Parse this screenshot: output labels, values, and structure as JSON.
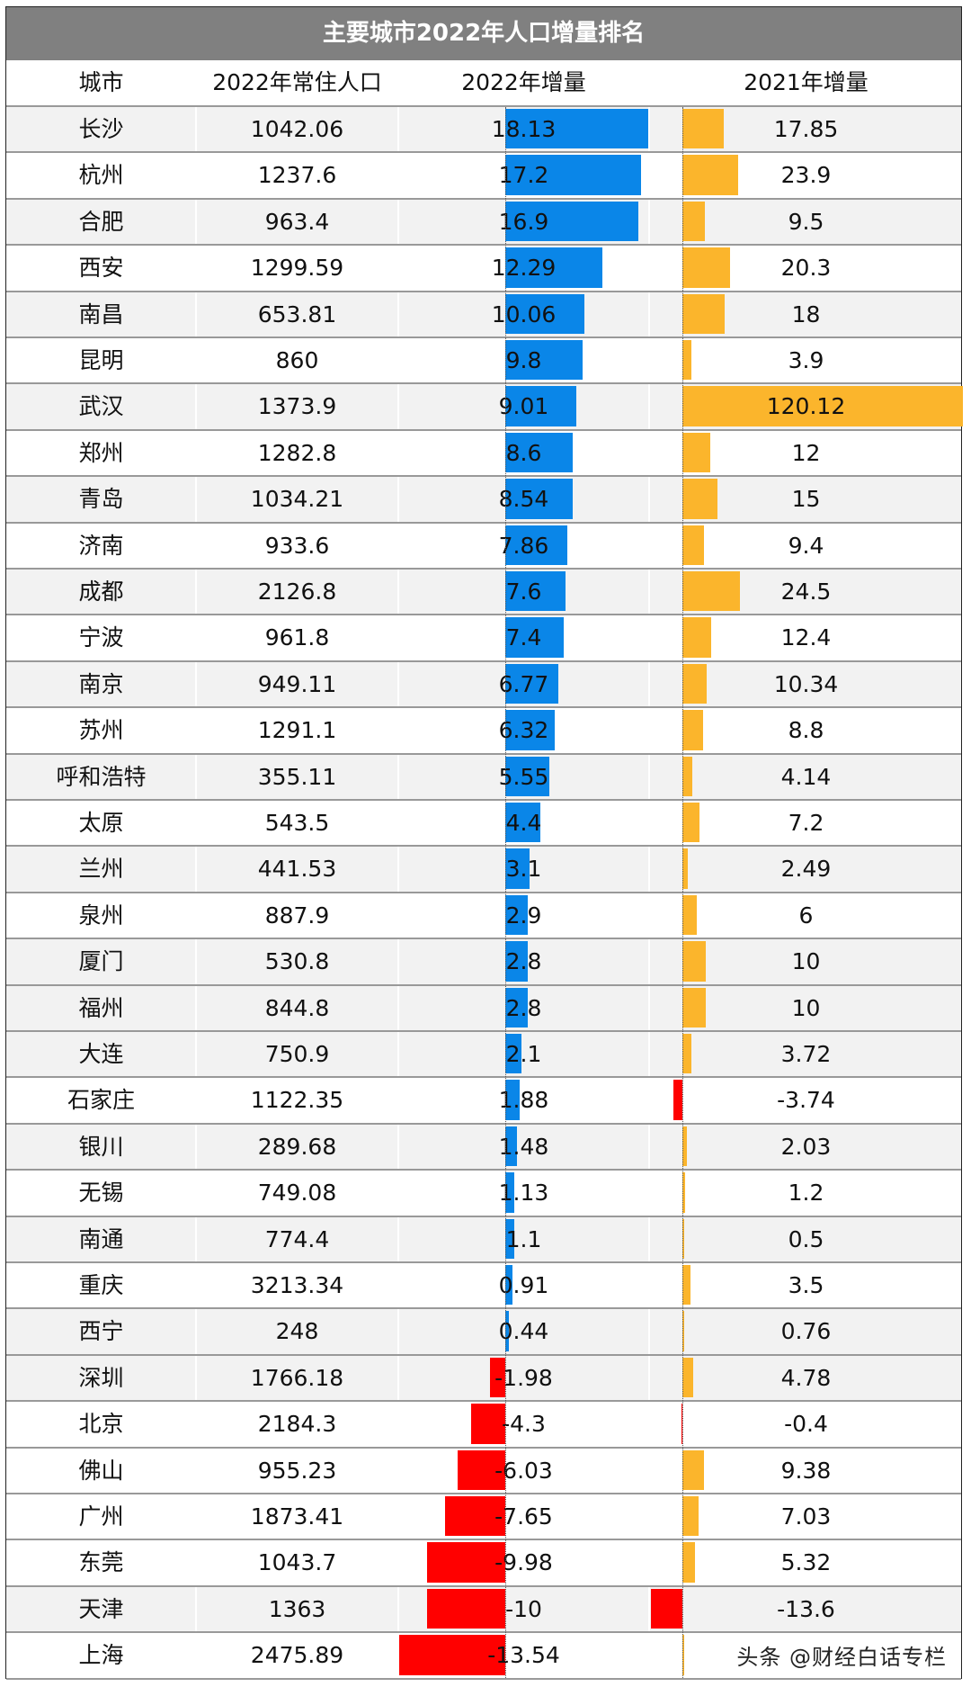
{
  "title": "主要城市2022年人口增量排名",
  "headers": {
    "city": "城市",
    "population_2022": "2022年常住人口",
    "increase_2022": "2022年增量",
    "increase_2021": "2021年增量"
  },
  "watermark": "头条 @财经白话专栏",
  "colors": {
    "title_bg": "#808080",
    "positive_2022": "#0a86e8",
    "positive_2021": "#fbb52c",
    "negative": "#ff0000",
    "row_gray": "#f2f2f2"
  },
  "rows": [
    {
      "city": "长沙",
      "pop": "1042.06",
      "inc2022": "18.13",
      "inc2021": "17.85",
      "bg": "gray"
    },
    {
      "city": "杭州",
      "pop": "1237.6",
      "inc2022": "17.2",
      "inc2021": "23.9",
      "bg": "white"
    },
    {
      "city": "合肥",
      "pop": "963.4",
      "inc2022": "16.9",
      "inc2021": "9.5",
      "bg": "gray"
    },
    {
      "city": "西安",
      "pop": "1299.59",
      "inc2022": "12.29",
      "inc2021": "20.3",
      "bg": "white"
    },
    {
      "city": "南昌",
      "pop": "653.81",
      "inc2022": "10.06",
      "inc2021": "18",
      "bg": "gray"
    },
    {
      "city": "昆明",
      "pop": "860",
      "inc2022": "9.8",
      "inc2021": "3.9",
      "bg": "white"
    },
    {
      "city": "武汉",
      "pop": "1373.9",
      "inc2022": "9.01",
      "inc2021": "120.12",
      "bg": "gray"
    },
    {
      "city": "郑州",
      "pop": "1282.8",
      "inc2022": "8.6",
      "inc2021": "12",
      "bg": "white"
    },
    {
      "city": "青岛",
      "pop": "1034.21",
      "inc2022": "8.54",
      "inc2021": "15",
      "bg": "gray"
    },
    {
      "city": "济南",
      "pop": "933.6",
      "inc2022": "7.86",
      "inc2021": "9.4",
      "bg": "white"
    },
    {
      "city": "成都",
      "pop": "2126.8",
      "inc2022": "7.6",
      "inc2021": "24.5",
      "bg": "gray"
    },
    {
      "city": "宁波",
      "pop": "961.8",
      "inc2022": "7.4",
      "inc2021": "12.4",
      "bg": "white"
    },
    {
      "city": "南京",
      "pop": "949.11",
      "inc2022": "6.77",
      "inc2021": "10.34",
      "bg": "gray"
    },
    {
      "city": "苏州",
      "pop": "1291.1",
      "inc2022": "6.32",
      "inc2021": "8.8",
      "bg": "white"
    },
    {
      "city": "呼和浩特",
      "pop": "355.11",
      "inc2022": "5.55",
      "inc2021": "4.14",
      "bg": "gray"
    },
    {
      "city": "太原",
      "pop": "543.5",
      "inc2022": "4.4",
      "inc2021": "7.2",
      "bg": "white"
    },
    {
      "city": "兰州",
      "pop": "441.53",
      "inc2022": "3.1",
      "inc2021": "2.49",
      "bg": "gray"
    },
    {
      "city": "泉州",
      "pop": "887.9",
      "inc2022": "2.9",
      "inc2021": "6",
      "bg": "white"
    },
    {
      "city": "厦门",
      "pop": "530.8",
      "inc2022": "2.8",
      "inc2021": "10",
      "bg": "gray"
    },
    {
      "city": "福州",
      "pop": "844.8",
      "inc2022": "2.8",
      "inc2021": "10",
      "bg": "gray"
    },
    {
      "city": "大连",
      "pop": "750.9",
      "inc2022": "2.1",
      "inc2021": "3.72",
      "bg": "gray"
    },
    {
      "city": "石家庄",
      "pop": "1122.35",
      "inc2022": "1.88",
      "inc2021": "-3.74",
      "bg": "white"
    },
    {
      "city": "银川",
      "pop": "289.68",
      "inc2022": "1.48",
      "inc2021": "2.03",
      "bg": "gray"
    },
    {
      "city": "无锡",
      "pop": "749.08",
      "inc2022": "1.13",
      "inc2021": "1.2",
      "bg": "white"
    },
    {
      "city": "南通",
      "pop": "774.4",
      "inc2022": "1.1",
      "inc2021": "0.5",
      "bg": "gray"
    },
    {
      "city": "重庆",
      "pop": "3213.34",
      "inc2022": "0.91",
      "inc2021": "3.5",
      "bg": "white"
    },
    {
      "city": "西宁",
      "pop": "248",
      "inc2022": "0.44",
      "inc2021": "0.76",
      "bg": "gray"
    },
    {
      "city": "深圳",
      "pop": "1766.18",
      "inc2022": "-1.98",
      "inc2021": "4.78",
      "bg": "gray"
    },
    {
      "city": "北京",
      "pop": "2184.3",
      "inc2022": "-4.3",
      "inc2021": "-0.4",
      "bg": "white"
    },
    {
      "city": "佛山",
      "pop": "955.23",
      "inc2022": "-6.03",
      "inc2021": "9.38",
      "bg": "white"
    },
    {
      "city": "广州",
      "pop": "1873.41",
      "inc2022": "-7.65",
      "inc2021": "7.03",
      "bg": "white"
    },
    {
      "city": "东莞",
      "pop": "1043.7",
      "inc2022": "-9.98",
      "inc2021": "5.32",
      "bg": "white"
    },
    {
      "city": "天津",
      "pop": "1363",
      "inc2022": "-10",
      "inc2021": "-13.6",
      "bg": "gray"
    },
    {
      "city": "上海",
      "pop": "2475.89",
      "inc2022": "-13.54",
      "inc2021": "",
      "bg": "white",
      "inc2021_bar_hint": 0.5
    }
  ],
  "chart_data": {
    "type": "table",
    "title": "主要城市2022年人口增量排名",
    "columns": [
      "城市",
      "2022年常住人口",
      "2022年增量",
      "2021年增量"
    ],
    "categories": [
      "长沙",
      "杭州",
      "合肥",
      "西安",
      "南昌",
      "昆明",
      "武汉",
      "郑州",
      "青岛",
      "济南",
      "成都",
      "宁波",
      "南京",
      "苏州",
      "呼和浩特",
      "太原",
      "兰州",
      "泉州",
      "厦门",
      "福州",
      "大连",
      "石家庄",
      "银川",
      "无锡",
      "南通",
      "重庆",
      "西宁",
      "深圳",
      "北京",
      "佛山",
      "广州",
      "东莞",
      "天津",
      "上海"
    ],
    "series": [
      {
        "name": "2022年常住人口",
        "values": [
          1042.06,
          1237.6,
          963.4,
          1299.59,
          653.81,
          860,
          1373.9,
          1282.8,
          1034.21,
          933.6,
          2126.8,
          961.8,
          949.11,
          1291.1,
          355.11,
          543.5,
          441.53,
          887.9,
          530.8,
          844.8,
          750.9,
          1122.35,
          289.68,
          749.08,
          774.4,
          3213.34,
          248,
          1766.18,
          2184.3,
          955.23,
          1873.41,
          1043.7,
          1363,
          2475.89
        ]
      },
      {
        "name": "2022年增量",
        "values": [
          18.13,
          17.2,
          16.9,
          12.29,
          10.06,
          9.8,
          9.01,
          8.6,
          8.54,
          7.86,
          7.6,
          7.4,
          6.77,
          6.32,
          5.55,
          4.4,
          3.1,
          2.9,
          2.8,
          2.8,
          2.1,
          1.88,
          1.48,
          1.13,
          1.1,
          0.91,
          0.44,
          -1.98,
          -4.3,
          -6.03,
          -7.65,
          -9.98,
          -10,
          -13.54
        ]
      },
      {
        "name": "2021年增量",
        "values": [
          17.85,
          23.9,
          9.5,
          20.3,
          18,
          3.9,
          120.12,
          12,
          15,
          9.4,
          24.5,
          12.4,
          10.34,
          8.8,
          4.14,
          7.2,
          2.49,
          6,
          10,
          10,
          3.72,
          -3.74,
          2.03,
          1.2,
          0.5,
          3.5,
          0.76,
          4.78,
          -0.4,
          9.38,
          7.03,
          5.32,
          -13.6,
          null
        ]
      }
    ],
    "notes": "In-cell data bars: blue = positive 2022 increase, orange = positive 2021 increase, red = negative. 上海 2021 value obscured by watermark."
  }
}
